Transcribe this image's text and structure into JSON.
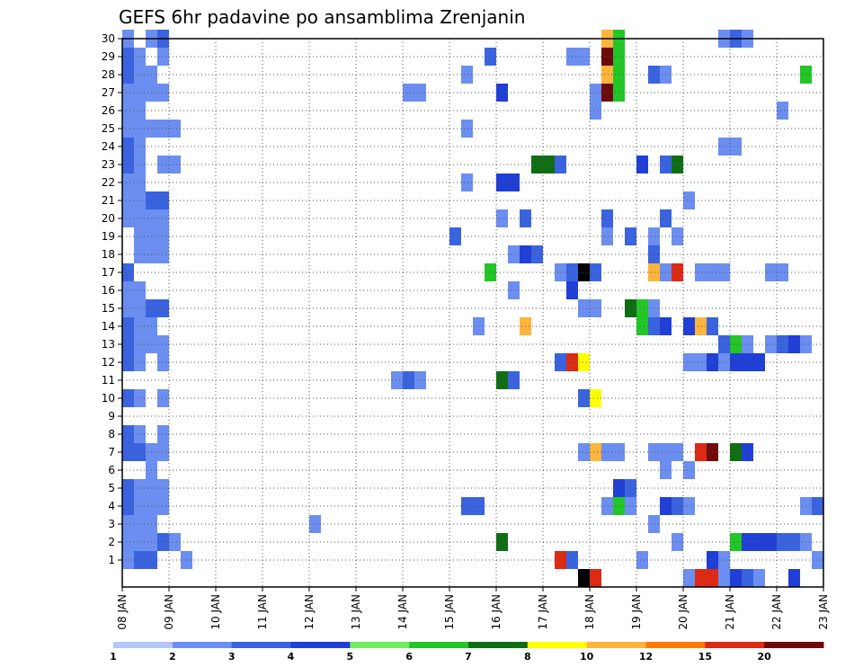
{
  "chart_data": {
    "type": "heatmap",
    "title": "GEFS 6hr padavine po ansamblima Zrenjanin",
    "xlabel": "",
    "ylabel": "",
    "x_ticks": [
      "08 JAN",
      "09 JAN",
      "10 JAN",
      "11 JAN",
      "12 JAN",
      "13 JAN",
      "14 JAN",
      "15 JAN",
      "16 JAN",
      "17 JAN",
      "18 JAN",
      "19 JAN",
      "20 JAN",
      "21 JAN",
      "22 JAN",
      "23 JAN"
    ],
    "y_ticks": [
      "1",
      "2",
      "3",
      "4",
      "5",
      "6",
      "7",
      "8",
      "9",
      "10",
      "11",
      "12",
      "13",
      "14",
      "15",
      "16",
      "17",
      "18",
      "19",
      "20",
      "21",
      "22",
      "23",
      "24",
      "25",
      "26",
      "27",
      "28",
      "29",
      "30"
    ],
    "x_unit": "6h steps from 08 JAN 00Z",
    "xlim": [
      0,
      60
    ],
    "ylim": [
      0,
      30
    ],
    "grid": true,
    "colorbar": {
      "labels": [
        "1",
        "2",
        "3",
        "4",
        "5",
        "6",
        "7",
        "8",
        "10",
        "12",
        "15",
        "20"
      ],
      "colors": [
        "#b4c6f8",
        "#6b8ef0",
        "#3a63e0",
        "#1f3fd6",
        "#70ee60",
        "#22c626",
        "#0f6e14",
        "#ffff00",
        "#ffb43c",
        "#ff7800",
        "#dc2a14",
        "#6e0a0a"
      ]
    },
    "cells": [
      [
        0,
        1,
        1
      ],
      [
        1,
        1,
        2
      ],
      [
        2,
        1,
        2
      ],
      [
        5,
        1,
        1
      ],
      [
        0,
        2,
        1
      ],
      [
        1,
        2,
        1
      ],
      [
        2,
        2,
        1
      ],
      [
        3,
        2,
        2
      ],
      [
        4,
        2,
        1
      ],
      [
        0,
        3,
        1
      ],
      [
        1,
        3,
        1
      ],
      [
        2,
        3,
        1
      ],
      [
        0,
        4,
        2
      ],
      [
        1,
        4,
        1
      ],
      [
        2,
        4,
        1
      ],
      [
        3,
        4,
        1
      ],
      [
        0,
        5,
        2
      ],
      [
        1,
        5,
        1
      ],
      [
        2,
        5,
        1
      ],
      [
        3,
        5,
        1
      ],
      [
        2,
        6,
        1
      ],
      [
        0,
        7,
        2
      ],
      [
        1,
        7,
        2
      ],
      [
        2,
        7,
        1
      ],
      [
        3,
        7,
        1
      ],
      [
        0,
        8,
        2
      ],
      [
        1,
        8,
        1
      ],
      [
        3,
        8,
        1
      ],
      [
        0,
        10,
        2
      ],
      [
        1,
        10,
        1
      ],
      [
        3,
        10,
        1
      ],
      [
        0,
        12,
        2
      ],
      [
        1,
        12,
        1
      ],
      [
        3,
        12,
        1
      ],
      [
        0,
        13,
        2
      ],
      [
        1,
        13,
        1
      ],
      [
        2,
        13,
        1
      ],
      [
        3,
        13,
        1
      ],
      [
        0,
        14,
        2
      ],
      [
        1,
        14,
        1
      ],
      [
        2,
        14,
        1
      ],
      [
        0,
        15,
        1
      ],
      [
        1,
        15,
        1
      ],
      [
        2,
        15,
        2
      ],
      [
        3,
        15,
        2
      ],
      [
        0,
        16,
        1
      ],
      [
        1,
        16,
        1
      ],
      [
        0,
        17,
        2
      ],
      [
        1,
        18,
        1
      ],
      [
        2,
        18,
        1
      ],
      [
        3,
        18,
        1
      ],
      [
        1,
        19,
        1
      ],
      [
        2,
        19,
        1
      ],
      [
        3,
        19,
        1
      ],
      [
        0,
        20,
        1
      ],
      [
        1,
        20,
        1
      ],
      [
        2,
        20,
        1
      ],
      [
        3,
        20,
        1
      ],
      [
        0,
        21,
        1
      ],
      [
        1,
        21,
        1
      ],
      [
        2,
        21,
        2
      ],
      [
        3,
        21,
        2
      ],
      [
        0,
        22,
        1
      ],
      [
        1,
        22,
        1
      ],
      [
        0,
        23,
        2
      ],
      [
        1,
        23,
        1
      ],
      [
        3,
        23,
        1
      ],
      [
        4,
        23,
        1
      ],
      [
        0,
        24,
        2
      ],
      [
        1,
        24,
        1
      ],
      [
        0,
        25,
        1
      ],
      [
        1,
        25,
        1
      ],
      [
        2,
        25,
        1
      ],
      [
        3,
        25,
        1
      ],
      [
        4,
        25,
        1
      ],
      [
        0,
        26,
        1
      ],
      [
        1,
        26,
        1
      ],
      [
        0,
        27,
        1
      ],
      [
        1,
        27,
        1
      ],
      [
        2,
        27,
        1
      ],
      [
        3,
        27,
        1
      ],
      [
        0,
        28,
        2
      ],
      [
        1,
        28,
        1
      ],
      [
        2,
        28,
        1
      ],
      [
        0,
        29,
        2
      ],
      [
        1,
        29,
        1
      ],
      [
        3,
        29,
        1
      ],
      [
        0,
        30,
        1
      ],
      [
        2,
        30,
        1
      ],
      [
        3,
        30,
        2
      ],
      [
        16,
        3,
        1
      ],
      [
        23,
        11,
        1
      ],
      [
        24,
        11,
        2
      ],
      [
        25,
        11,
        1
      ],
      [
        24,
        27,
        1
      ],
      [
        25,
        27,
        1
      ],
      [
        28,
        19,
        2
      ],
      [
        29,
        4,
        2
      ],
      [
        30,
        4,
        2
      ],
      [
        29,
        25,
        1
      ],
      [
        29,
        22,
        1
      ],
      [
        29,
        28,
        1
      ],
      [
        30,
        14,
        1
      ],
      [
        31,
        29,
        2
      ],
      [
        31,
        17,
        5
      ],
      [
        32,
        2,
        6
      ],
      [
        32,
        11,
        6
      ],
      [
        33,
        11,
        2
      ],
      [
        32,
        20,
        1
      ],
      [
        32,
        22,
        3
      ],
      [
        33,
        22,
        3
      ],
      [
        32,
        27,
        3
      ],
      [
        33,
        16,
        1
      ],
      [
        33,
        18,
        1
      ],
      [
        34,
        18,
        3
      ],
      [
        35,
        18,
        2
      ],
      [
        34,
        14,
        8
      ],
      [
        34,
        20,
        2
      ],
      [
        35,
        23,
        6
      ],
      [
        36,
        23,
        6
      ],
      [
        37,
        23,
        2
      ],
      [
        37,
        17,
        1
      ],
      [
        38,
        17,
        2
      ],
      [
        39,
        17,
        14
      ],
      [
        40,
        17,
        2
      ],
      [
        37,
        12,
        2
      ],
      [
        38,
        12,
        10
      ],
      [
        39,
        12,
        7
      ],
      [
        37,
        1,
        10
      ],
      [
        38,
        1,
        2
      ],
      [
        38,
        16,
        3
      ],
      [
        38,
        29,
        1
      ],
      [
        39,
        29,
        1
      ],
      [
        39,
        15,
        1
      ],
      [
        40,
        15,
        1
      ],
      [
        39,
        0,
        15
      ],
      [
        40,
        0,
        10
      ],
      [
        39,
        7,
        1
      ],
      [
        40,
        7,
        8
      ],
      [
        41,
        7,
        1
      ],
      [
        42,
        7,
        1
      ],
      [
        39,
        10,
        2
      ],
      [
        40,
        10,
        7
      ],
      [
        40,
        26,
        1
      ],
      [
        40,
        27,
        1
      ],
      [
        41,
        27,
        11
      ],
      [
        42,
        27,
        5
      ],
      [
        41,
        28,
        8
      ],
      [
        42,
        28,
        5
      ],
      [
        41,
        29,
        11
      ],
      [
        42,
        29,
        5
      ],
      [
        41,
        30,
        8
      ],
      [
        42,
        30,
        5
      ],
      [
        40,
        17,
        2
      ],
      [
        41,
        4,
        1
      ],
      [
        42,
        4,
        5
      ],
      [
        43,
        4,
        1
      ],
      [
        42,
        5,
        3
      ],
      [
        43,
        5,
        2
      ],
      [
        41,
        19,
        1
      ],
      [
        43,
        19,
        2
      ],
      [
        41,
        20,
        2
      ],
      [
        43,
        15,
        6
      ],
      [
        44,
        15,
        5
      ],
      [
        45,
        15,
        1
      ],
      [
        44,
        14,
        5
      ],
      [
        45,
        14,
        2
      ],
      [
        44,
        23,
        3
      ],
      [
        44,
        1,
        1
      ],
      [
        45,
        3,
        1
      ],
      [
        45,
        7,
        1
      ],
      [
        46,
        7,
        1
      ],
      [
        47,
        7,
        1
      ],
      [
        45,
        17,
        8
      ],
      [
        46,
        17,
        1
      ],
      [
        47,
        17,
        10
      ],
      [
        45,
        18,
        2
      ],
      [
        45,
        19,
        1
      ],
      [
        45,
        28,
        2
      ],
      [
        46,
        28,
        1
      ],
      [
        46,
        4,
        3
      ],
      [
        47,
        4,
        2
      ],
      [
        48,
        4,
        1
      ],
      [
        46,
        6,
        1
      ],
      [
        46,
        14,
        3
      ],
      [
        46,
        20,
        2
      ],
      [
        46,
        23,
        2
      ],
      [
        47,
        23,
        6
      ],
      [
        47,
        2,
        1
      ],
      [
        47,
        19,
        1
      ],
      [
        48,
        6,
        1
      ],
      [
        48,
        14,
        3
      ],
      [
        49,
        14,
        8
      ],
      [
        50,
        14,
        2
      ],
      [
        48,
        12,
        1
      ],
      [
        49,
        12,
        1
      ],
      [
        48,
        21,
        1
      ],
      [
        48,
        0,
        1
      ],
      [
        49,
        0,
        10
      ],
      [
        50,
        0,
        10
      ],
      [
        49,
        7,
        10
      ],
      [
        50,
        7,
        11
      ],
      [
        49,
        17,
        1
      ],
      [
        50,
        17,
        1
      ],
      [
        51,
        17,
        1
      ],
      [
        50,
        1,
        3
      ],
      [
        50,
        12,
        3
      ],
      [
        51,
        12,
        1
      ],
      [
        51,
        1,
        1
      ],
      [
        51,
        13,
        2
      ],
      [
        52,
        13,
        5
      ],
      [
        53,
        13,
        1
      ],
      [
        51,
        24,
        1
      ],
      [
        52,
        24,
        1
      ],
      [
        51,
        30,
        1
      ],
      [
        52,
        30,
        2
      ],
      [
        53,
        30,
        1
      ],
      [
        51,
        0,
        1
      ],
      [
        52,
        0,
        3
      ],
      [
        53,
        0,
        2
      ],
      [
        52,
        7,
        6
      ],
      [
        53,
        7,
        3
      ],
      [
        52,
        2,
        5
      ],
      [
        53,
        2,
        3
      ],
      [
        54,
        2,
        3
      ],
      [
        55,
        2,
        3
      ],
      [
        56,
        2,
        2
      ],
      [
        57,
        2,
        2
      ],
      [
        58,
        2,
        1
      ],
      [
        52,
        12,
        3
      ],
      [
        53,
        12,
        3
      ],
      [
        54,
        12,
        3
      ],
      [
        54,
        0,
        1
      ],
      [
        55,
        17,
        1
      ],
      [
        56,
        17,
        1
      ],
      [
        55,
        13,
        1
      ],
      [
        56,
        13,
        2
      ],
      [
        57,
        13,
        3
      ],
      [
        58,
        13,
        1
      ],
      [
        56,
        26,
        1
      ],
      [
        57,
        0,
        3
      ],
      [
        58,
        28,
        5
      ],
      [
        58,
        4,
        1
      ],
      [
        59,
        4,
        2
      ],
      [
        59,
        1,
        1
      ],
      [
        60,
        10,
        2
      ]
    ]
  }
}
